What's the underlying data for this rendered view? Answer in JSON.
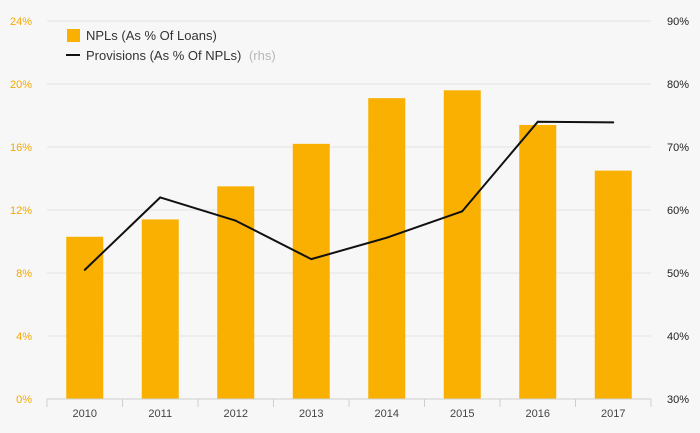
{
  "colors": {
    "background": "#f7f7f7",
    "bar": "#f9b000",
    "line": "#111111",
    "grid": "#e3e3e3",
    "left_axis_text": "#f5a800",
    "right_axis_text": "#222222"
  },
  "chart_data": {
    "type": "bar",
    "categories": [
      "2010",
      "2011",
      "2012",
      "2013",
      "2014",
      "2015",
      "2016",
      "2017"
    ],
    "series": [
      {
        "name": "NPLs (As % Of Loans)",
        "type": "bar",
        "axis": "left",
        "values": [
          10.3,
          11.4,
          13.5,
          16.2,
          19.1,
          19.6,
          17.4,
          14.5
        ]
      },
      {
        "name": "Provisions (As % Of NPLs)",
        "name_suffix": "(rhs)",
        "type": "line",
        "axis": "right",
        "values": [
          50.5,
          62.0,
          58.3,
          52.2,
          55.6,
          59.8,
          74.0,
          73.9
        ]
      }
    ],
    "y_left": {
      "ticks": [
        "0%",
        "4%",
        "8%",
        "12%",
        "16%",
        "20%",
        "24%"
      ],
      "range": [
        0,
        24
      ]
    },
    "y_right": {
      "ticks": [
        "30%",
        "40%",
        "50%",
        "60%",
        "70%",
        "80%",
        "90%"
      ],
      "range": [
        30,
        90
      ]
    },
    "grid": true,
    "legend_position": "top-left"
  }
}
